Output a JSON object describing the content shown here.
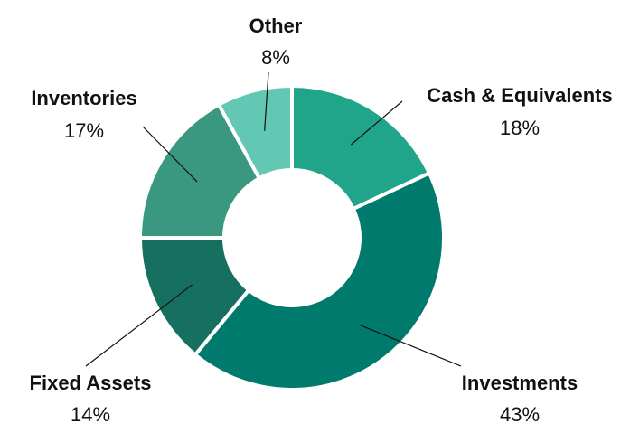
{
  "chart_data": {
    "type": "pie",
    "categories": [
      "Cash & Equivalents",
      "Investments",
      "Fixed Assets",
      "Inventories",
      "Other"
    ],
    "values": [
      18,
      43,
      14,
      17,
      8
    ],
    "value_labels": [
      "18%",
      "43%",
      "14%",
      "17%",
      "8%"
    ],
    "colors": [
      "#20a58a",
      "#007a6c",
      "#15705f",
      "#3a9880",
      "#62c7b3"
    ]
  }
}
